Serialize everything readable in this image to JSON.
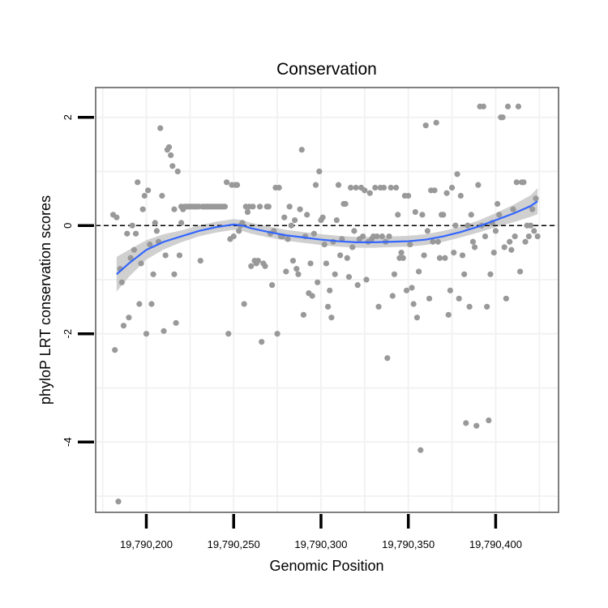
{
  "chart_data": {
    "type": "scatter",
    "title": "Conservation",
    "xlabel": "Genomic Position",
    "ylabel": "phyloP LRT conservation scores",
    "xlim": [
      19790171,
      19790436
    ],
    "ylim": [
      -5.3,
      2.55
    ],
    "x_ticks": [
      19790200,
      19790250,
      19790300,
      19790350,
      19790400
    ],
    "x_tick_labels": [
      "19,790,200",
      "19,790,250",
      "19,790,300",
      "19,790,350",
      "19,790,400"
    ],
    "y_ticks": [
      2,
      0,
      -2,
      -4
    ],
    "y_tick_labels": [
      "2",
      "0",
      "-2",
      "-4"
    ],
    "reference_line": {
      "y": 0,
      "style": "dashed"
    },
    "colors": {
      "points": "#999999",
      "smooth_line": "#3366ff",
      "ribbon": "#c8c8c8",
      "grid": "#f2f2f2",
      "frame": "#7f7f7f"
    },
    "points": [
      [
        19790181,
        0.2
      ],
      [
        19790182,
        -2.3
      ],
      [
        19790183,
        0.15
      ],
      [
        19790184,
        -5.1
      ],
      [
        19790185,
        -0.8
      ],
      [
        19790186,
        -1.05
      ],
      [
        19790187,
        -1.85
      ],
      [
        19790189,
        -0.15
      ],
      [
        19790190,
        -1.7
      ],
      [
        19790191,
        -0.6
      ],
      [
        19790192,
        0.0
      ],
      [
        19790193,
        -0.45
      ],
      [
        19790194,
        -0.15
      ],
      [
        19790195,
        0.8
      ],
      [
        19790196,
        -1.45
      ],
      [
        19790197,
        -0.7
      ],
      [
        19790198,
        0.3
      ],
      [
        19790199,
        0.55
      ],
      [
        19790200,
        -2.0
      ],
      [
        19790201,
        0.65
      ],
      [
        19790202,
        -0.35
      ],
      [
        19790203,
        -1.45
      ],
      [
        19790204,
        -0.9
      ],
      [
        19790205,
        0.05
      ],
      [
        19790206,
        -0.1
      ],
      [
        19790207,
        -0.3
      ],
      [
        19790208,
        1.8
      ],
      [
        19790209,
        0.55
      ],
      [
        19790210,
        -1.95
      ],
      [
        19790211,
        -0.55
      ],
      [
        19790212,
        1.4
      ],
      [
        19790213,
        1.45
      ],
      [
        19790214,
        1.3
      ],
      [
        19790215,
        1.1
      ],
      [
        19790216,
        -0.9
      ],
      [
        19790216,
        0.3
      ],
      [
        19790217,
        -1.8
      ],
      [
        19790218,
        1.0
      ],
      [
        19790219,
        -0.55
      ],
      [
        19790220,
        0.05
      ],
      [
        19790220,
        0.35
      ],
      [
        19790221,
        0.3
      ],
      [
        19790222,
        0.35
      ],
      [
        19790223,
        0.35
      ],
      [
        19790224,
        0.35
      ],
      [
        19790225,
        0.35
      ],
      [
        19790226,
        0.35
      ],
      [
        19790227,
        0.35
      ],
      [
        19790228,
        0.35
      ],
      [
        19790229,
        0.35
      ],
      [
        19790230,
        0.35
      ],
      [
        19790231,
        -0.65
      ],
      [
        19790232,
        0.35
      ],
      [
        19790233,
        0.35
      ],
      [
        19790234,
        0.35
      ],
      [
        19790235,
        0.35
      ],
      [
        19790236,
        0.35
      ],
      [
        19790237,
        0.35
      ],
      [
        19790238,
        0.35
      ],
      [
        19790239,
        0.35
      ],
      [
        19790240,
        0.35
      ],
      [
        19790241,
        0.35
      ],
      [
        19790242,
        0.35
      ],
      [
        19790243,
        0.35
      ],
      [
        19790244,
        0.35
      ],
      [
        19790245,
        0.35
      ],
      [
        19790246,
        0.8
      ],
      [
        19790247,
        -2.0
      ],
      [
        19790248,
        -0.25
      ],
      [
        19790249,
        0.75
      ],
      [
        19790250,
        -0.2
      ],
      [
        19790251,
        0.75
      ],
      [
        19790252,
        0.75
      ],
      [
        19790253,
        -0.1
      ],
      [
        19790254,
        0.0
      ],
      [
        19790255,
        0.05
      ],
      [
        19790256,
        -1.45
      ],
      [
        19790257,
        0.35
      ],
      [
        19790258,
        0.25
      ],
      [
        19790259,
        0.35
      ],
      [
        19790260,
        -0.75
      ],
      [
        19790261,
        0.35
      ],
      [
        19790262,
        -0.65
      ],
      [
        19790263,
        -0.7
      ],
      [
        19790264,
        -0.65
      ],
      [
        19790265,
        0.35
      ],
      [
        19790266,
        -2.15
      ],
      [
        19790267,
        -0.7
      ],
      [
        19790268,
        -0.75
      ],
      [
        19790269,
        0.35
      ],
      [
        19790270,
        0.35
      ],
      [
        19790271,
        -0.15
      ],
      [
        19790272,
        -1.1
      ],
      [
        19790273,
        -0.1
      ],
      [
        19790274,
        0.7
      ],
      [
        19790275,
        -2.0
      ],
      [
        19790276,
        0.7
      ],
      [
        19790277,
        -0.2
      ],
      [
        19790278,
        -0.2
      ],
      [
        19790279,
        0.15
      ],
      [
        19790280,
        -0.85
      ],
      [
        19790281,
        -0.25
      ],
      [
        19790282,
        0.35
      ],
      [
        19790283,
        0.0
      ],
      [
        19790284,
        -0.65
      ],
      [
        19790285,
        0.1
      ],
      [
        19790286,
        -0.8
      ],
      [
        19790287,
        -0.9
      ],
      [
        19790288,
        0.3
      ],
      [
        19790289,
        1.4
      ],
      [
        19790290,
        -1.65
      ],
      [
        19790291,
        -0.2
      ],
      [
        19790292,
        0.2
      ],
      [
        19790293,
        -1.25
      ],
      [
        19790294,
        -0.7
      ],
      [
        19790295,
        -1.3
      ],
      [
        19790296,
        -0.15
      ],
      [
        19790297,
        0.75
      ],
      [
        19790298,
        -1.05
      ],
      [
        19790299,
        1.0
      ],
      [
        19790300,
        0.1
      ],
      [
        19790301,
        0.15
      ],
      [
        19790302,
        -0.35
      ],
      [
        19790303,
        -0.7
      ],
      [
        19790304,
        -1.5
      ],
      [
        19790305,
        -1.2
      ],
      [
        19790306,
        -1.7
      ],
      [
        19790307,
        -0.3
      ],
      [
        19790308,
        -0.9
      ],
      [
        19790309,
        0.1
      ],
      [
        19790310,
        0.75
      ],
      [
        19790311,
        -0.55
      ],
      [
        19790312,
        -0.25
      ],
      [
        19790313,
        0.4
      ],
      [
        19790314,
        0.4
      ],
      [
        19790315,
        -0.6
      ],
      [
        19790316,
        -0.95
      ],
      [
        19790317,
        0.7
      ],
      [
        19790318,
        -0.4
      ],
      [
        19790319,
        -0.1
      ],
      [
        19790320,
        0.7
      ],
      [
        19790321,
        -1.1
      ],
      [
        19790322,
        -0.25
      ],
      [
        19790323,
        0.7
      ],
      [
        19790324,
        -0.2
      ],
      [
        19790325,
        0.65
      ],
      [
        19790326,
        -1.0
      ],
      [
        19790327,
        -0.3
      ],
      [
        19790328,
        0.6
      ],
      [
        19790329,
        -0.25
      ],
      [
        19790330,
        -0.2
      ],
      [
        19790331,
        0.7
      ],
      [
        19790332,
        -0.2
      ],
      [
        19790333,
        -1.5
      ],
      [
        19790334,
        0.7
      ],
      [
        19790335,
        -0.2
      ],
      [
        19790336,
        0.7
      ],
      [
        19790337,
        -0.3
      ],
      [
        19790338,
        -2.45
      ],
      [
        19790339,
        -0.2
      ],
      [
        19790340,
        0.7
      ],
      [
        19790341,
        -1.3
      ],
      [
        19790342,
        -0.9
      ],
      [
        19790343,
        0.7
      ],
      [
        19790344,
        0.2
      ],
      [
        19790345,
        -0.6
      ],
      [
        19790346,
        -0.5
      ],
      [
        19790347,
        -0.6
      ],
      [
        19790348,
        0.55
      ],
      [
        19790349,
        -1.2
      ],
      [
        19790350,
        0.55
      ],
      [
        19790351,
        -0.35
      ],
      [
        19790352,
        -1.15
      ],
      [
        19790353,
        -1.45
      ],
      [
        19790354,
        0.25
      ],
      [
        19790355,
        -1.7
      ],
      [
        19790356,
        -0.85
      ],
      [
        19790357,
        -4.15
      ],
      [
        19790358,
        0.2
      ],
      [
        19790359,
        -0.55
      ],
      [
        19790360,
        1.85
      ],
      [
        19790361,
        -0.1
      ],
      [
        19790362,
        -1.35
      ],
      [
        19790363,
        0.65
      ],
      [
        19790364,
        -0.3
      ],
      [
        19790365,
        0.65
      ],
      [
        19790366,
        1.9
      ],
      [
        19790367,
        -0.3
      ],
      [
        19790368,
        -0.6
      ],
      [
        19790369,
        0.2
      ],
      [
        19790370,
        0.2
      ],
      [
        19790371,
        -0.6
      ],
      [
        19790372,
        0.6
      ],
      [
        19790373,
        -1.65
      ],
      [
        19790374,
        -1.2
      ],
      [
        19790375,
        0.7
      ],
      [
        19790376,
        -0.5
      ],
      [
        19790377,
        0.0
      ],
      [
        19790378,
        0.95
      ],
      [
        19790379,
        -1.35
      ],
      [
        19790380,
        0.55
      ],
      [
        19790381,
        -0.55
      ],
      [
        19790382,
        -0.9
      ],
      [
        19790383,
        -3.65
      ],
      [
        19790384,
        0.0
      ],
      [
        19790385,
        -1.5
      ],
      [
        19790386,
        0.2
      ],
      [
        19790387,
        -0.3
      ],
      [
        19790388,
        -0.4
      ],
      [
        19790389,
        -3.7
      ],
      [
        19790390,
        0.75
      ],
      [
        19790391,
        2.2
      ],
      [
        19790392,
        0.0
      ],
      [
        19790393,
        2.2
      ],
      [
        19790394,
        -0.2
      ],
      [
        19790395,
        -1.5
      ],
      [
        19790396,
        -3.6
      ],
      [
        19790397,
        -0.9
      ],
      [
        19790398,
        0.05
      ],
      [
        19790399,
        -0.5
      ],
      [
        19790400,
        -0.1
      ],
      [
        19790401,
        0.4
      ],
      [
        19790402,
        0.2
      ],
      [
        19790403,
        2.0
      ],
      [
        19790404,
        2.0
      ],
      [
        19790405,
        -0.4
      ],
      [
        19790406,
        -1.35
      ],
      [
        19790407,
        2.2
      ],
      [
        19790408,
        -0.3
      ],
      [
        19790409,
        -0.45
      ],
      [
        19790410,
        0.3
      ],
      [
        19790411,
        -0.2
      ],
      [
        19790412,
        0.8
      ],
      [
        19790413,
        2.2
      ],
      [
        19790414,
        -0.85
      ],
      [
        19790415,
        0.8
      ],
      [
        19790416,
        0.8
      ],
      [
        19790417,
        -0.3
      ],
      [
        19790418,
        0.0
      ],
      [
        19790419,
        -0.2
      ],
      [
        19790420,
        0.0
      ],
      [
        19790421,
        0.3
      ],
      [
        19790422,
        -0.1
      ],
      [
        19790423,
        0.5
      ],
      [
        19790424,
        -0.2
      ]
    ],
    "smooth_curve": {
      "x": [
        19790183,
        19790190,
        19790200,
        19790210,
        19790220,
        19790230,
        19790240,
        19790250,
        19790255,
        19790260,
        19790270,
        19790280,
        19790290,
        19790300,
        19790310,
        19790320,
        19790330,
        19790340,
        19790350,
        19790360,
        19790370,
        19790380,
        19790390,
        19790400,
        19790410,
        19790420,
        19790424
      ],
      "y": [
        -0.9,
        -0.7,
        -0.45,
        -0.3,
        -0.2,
        -0.1,
        -0.03,
        0.02,
        0.0,
        -0.05,
        -0.12,
        -0.18,
        -0.22,
        -0.26,
        -0.29,
        -0.31,
        -0.31,
        -0.3,
        -0.29,
        -0.26,
        -0.2,
        -0.12,
        -0.02,
        0.1,
        0.22,
        0.36,
        0.45
      ],
      "ci_half_width": [
        0.32,
        0.25,
        0.18,
        0.14,
        0.11,
        0.1,
        0.1,
        0.1,
        0.1,
        0.1,
        0.1,
        0.1,
        0.1,
        0.1,
        0.1,
        0.1,
        0.1,
        0.1,
        0.1,
        0.1,
        0.1,
        0.1,
        0.11,
        0.13,
        0.16,
        0.2,
        0.24
      ]
    }
  }
}
